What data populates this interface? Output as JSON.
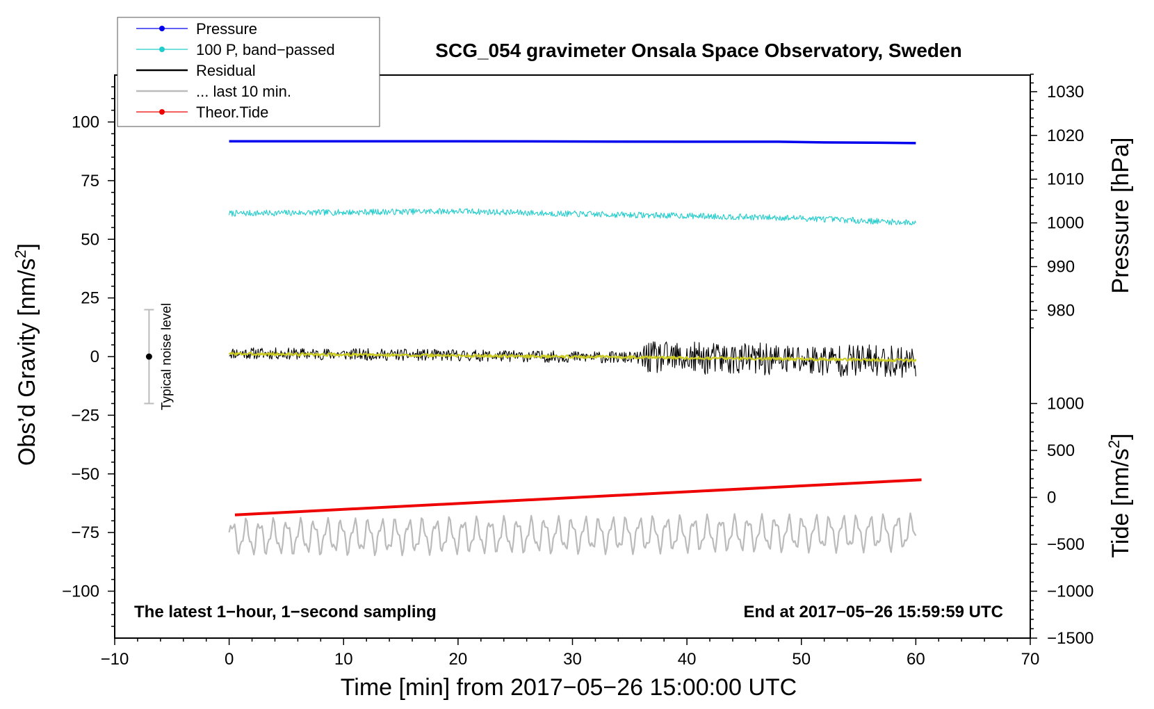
{
  "chart_data": {
    "type": "line",
    "title": "SCG_054 gravimeter Onsala Space Observatory, Sweden",
    "xlabel": "Time [min] from 2017−05−26 15:00:00 UTC",
    "ylabel_left_main": "Obs’d Gravity [nm/s",
    "ylabel_left_sup": "2",
    "ylabel_left_close": "]",
    "ylabel_right_pressure": "Pressure [hPa]",
    "ylabel_right_tide_main": "Tide [nm/s",
    "ylabel_right_tide_sup": "2",
    "ylabel_right_tide_close": "]",
    "xlim": [
      -10,
      70
    ],
    "ylim": [
      -120,
      120
    ],
    "x_ticks": [
      -10,
      0,
      10,
      20,
      30,
      40,
      50,
      60,
      70
    ],
    "x_tick_labels": [
      "−10",
      "0",
      "10",
      "20",
      "30",
      "40",
      "50",
      "60",
      "70"
    ],
    "y_ticks": [
      100,
      75,
      50,
      25,
      0,
      -25,
      -50,
      -75,
      -100
    ],
    "y_tick_labels": [
      "100",
      "75",
      "50",
      "25",
      "0",
      "−25",
      "−50",
      "−75",
      "−100"
    ],
    "pressure_axis": {
      "ticks": [
        1030,
        1020,
        1010,
        1000,
        990,
        980
      ],
      "tick_labels": [
        "1030",
        "1020",
        "1010",
        "1000",
        "990",
        "980"
      ],
      "gravity_at_1000": 57,
      "gravity_per_hPa": 1.864
    },
    "tide_axis": {
      "ticks": [
        1000,
        500,
        0,
        -500,
        -1000,
        -1500
      ],
      "tick_labels": [
        "1000",
        "500",
        "0",
        "−500",
        "−1000",
        "−1500"
      ],
      "gravity_at_0": -60,
      "gravity_per_unit": 0.04
    },
    "legend": [
      {
        "label": "Pressure",
        "color": "#0000ee",
        "marker": true
      },
      {
        "label": "100 P, band−passed",
        "color": "#22cccc",
        "marker": true
      },
      {
        "label": "Residual",
        "color": "#000000",
        "marker": false
      },
      {
        "label": "... last 10 min.",
        "color": "#bbbbbb",
        "marker": false
      },
      {
        "label": "Theor.Tide",
        "color": "#ee0000",
        "marker": true
      }
    ],
    "series": [
      {
        "name": "Pressure",
        "color": "#0000ee",
        "width": 3.5,
        "points": [
          [
            0,
            91.8
          ],
          [
            20,
            91.8
          ],
          [
            40,
            91.6
          ],
          [
            48,
            91.6
          ],
          [
            52,
            91.3
          ],
          [
            56,
            91.2
          ],
          [
            60,
            91.0
          ]
        ]
      },
      {
        "name": "100 P, band−passed",
        "color": "#22cccc",
        "width": 1.1,
        "noise_seed": 7,
        "noise_amp": 1.3,
        "points": [
          [
            0,
            61
          ],
          [
            10,
            61.5
          ],
          [
            20,
            62
          ],
          [
            30,
            60.8
          ],
          [
            40,
            60
          ],
          [
            50,
            59
          ],
          [
            60,
            57
          ]
        ]
      },
      {
        "name": "Residual",
        "color": "#000000",
        "width": 1.1,
        "noise_seed": 11,
        "noise_amp": 2.5,
        "points": [
          [
            0,
            1.5
          ],
          [
            20,
            0.5
          ],
          [
            36,
            -0.5
          ],
          [
            60,
            -2
          ]
        ]
      },
      {
        "name": "Residual (smoothed)",
        "color": "#cccc22",
        "width": 2.2,
        "noise_seed": 3,
        "noise_amp": 0.6,
        "points": [
          [
            0,
            1.2
          ],
          [
            20,
            0.4
          ],
          [
            36,
            -0.3
          ],
          [
            60,
            -1.6
          ]
        ]
      },
      {
        "name": "... last 10 min.",
        "color": "#bbbbbb",
        "width": 2.2,
        "wave": true,
        "points": [
          [
            0,
            -77
          ],
          [
            60,
            -75
          ]
        ]
      },
      {
        "name": "Theor.Tide",
        "color": "#ee0000",
        "width": 4,
        "points": [
          [
            0.5,
            -67.5
          ],
          [
            60.5,
            -52.5
          ]
        ]
      }
    ],
    "annotations": {
      "bottom_left": "The latest 1−hour, 1−second sampling",
      "bottom_right": "End at 2017−05−26 15:59:59 UTC",
      "noise_label": "Typical noise level"
    },
    "noise_bar": {
      "x": -7,
      "center": 0,
      "low": -20,
      "high": 20
    }
  }
}
